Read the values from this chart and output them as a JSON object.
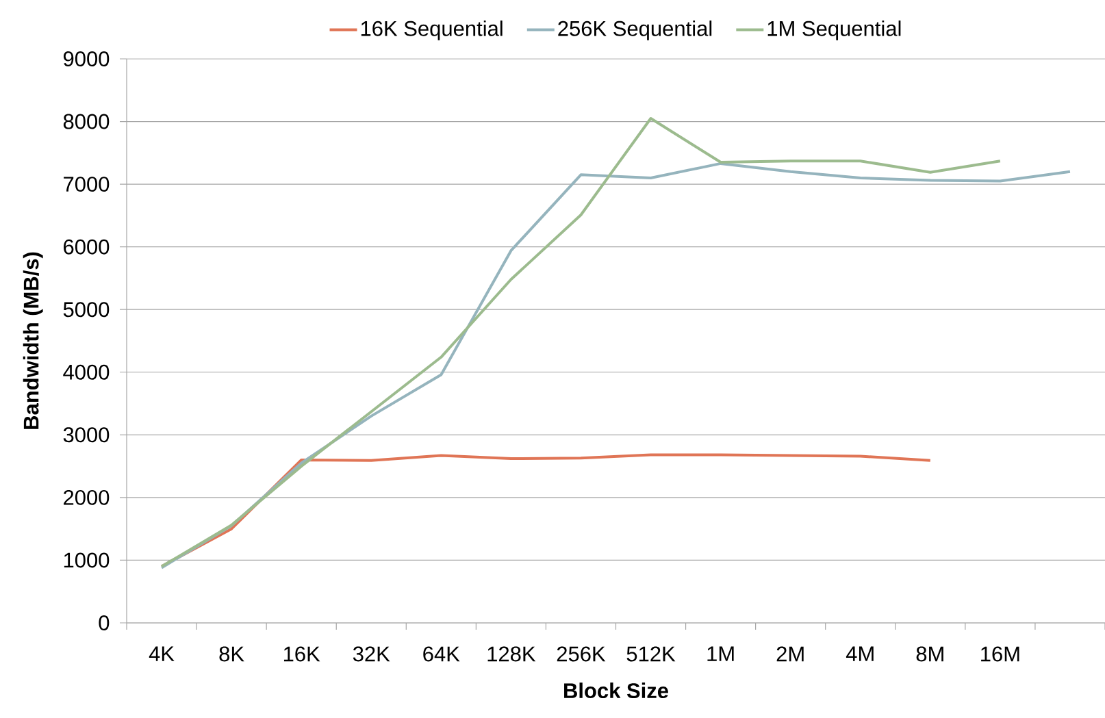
{
  "chart_data": {
    "type": "line",
    "xlabel": "Block Size",
    "ylabel": "Bandwidth (MB/s)",
    "categories": [
      "4K",
      "8K",
      "16K",
      "32K",
      "64K",
      "128K",
      "256K",
      "512K",
      "1M",
      "2M",
      "4M",
      "8M",
      "16M",
      null
    ],
    "series": [
      {
        "name": "16K Sequential",
        "color": "#e07556",
        "values": [
          900,
          1500,
          2600,
          2590,
          2670,
          2620,
          2630,
          2680,
          2680,
          2670,
          2660,
          2590,
          null,
          null
        ]
      },
      {
        "name": "256K Sequential",
        "color": "#95b4bd",
        "values": [
          880,
          1550,
          2550,
          3300,
          3960,
          5940,
          7150,
          7100,
          7330,
          7200,
          7100,
          7060,
          7050,
          7200
        ]
      },
      {
        "name": "1M Sequential",
        "color": "#9cbb8e",
        "values": [
          900,
          1560,
          2500,
          3370,
          4240,
          5480,
          6510,
          8050,
          7350,
          7370,
          7370,
          7190,
          7370,
          null
        ]
      }
    ],
    "ylim": [
      0,
      9000
    ],
    "yticks": [
      0,
      1000,
      2000,
      3000,
      4000,
      5000,
      6000,
      7000,
      8000,
      9000
    ],
    "grid": "y",
    "legend": "top",
    "marker": "none",
    "line_style": "solid"
  }
}
